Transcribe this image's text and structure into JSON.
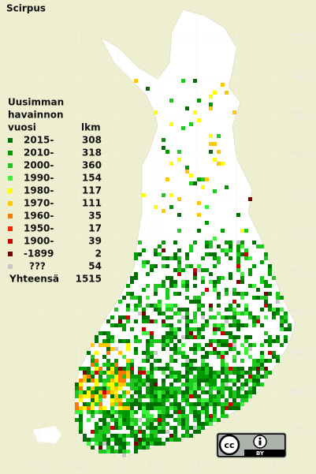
{
  "title": "Scirpus",
  "legend": {
    "header": [
      "Uusimman",
      "havainnon",
      "vuosi"
    ],
    "count_header": "lkm",
    "rows": [
      {
        "label": "2015-",
        "count": 308,
        "color": "#006f00"
      },
      {
        "label": "2010-",
        "count": 318,
        "color": "#009a00"
      },
      {
        "label": "2000-",
        "count": 360,
        "color": "#1ec81e"
      },
      {
        "label": "1990-",
        "count": 154,
        "color": "#3cf03c"
      },
      {
        "label": "1980-",
        "count": 117,
        "color": "#ffff00"
      },
      {
        "label": "1970-",
        "count": 111,
        "color": "#ffc800"
      },
      {
        "label": "1960-",
        "count": 35,
        "color": "#ff7800"
      },
      {
        "label": "1950-",
        "count": 17,
        "color": "#ff2800"
      },
      {
        "label": "1900-",
        "count": 39,
        "color": "#c80000"
      },
      {
        "label": "-1899",
        "count": 2,
        "color": "#780000"
      },
      {
        "label": "???",
        "count": 54,
        "color": "#c8c8c8"
      }
    ],
    "total_label": "Yhteensä",
    "total": 1515
  },
  "grid": {
    "y_ticks": [
      770,
      760,
      750,
      740,
      730,
      720,
      710,
      700,
      690,
      680,
      670
    ],
    "x_ticks": [
      310,
      320,
      330,
      340,
      350,
      360,
      370
    ]
  },
  "license": {
    "cc": "cc",
    "badge": "BY"
  }
}
